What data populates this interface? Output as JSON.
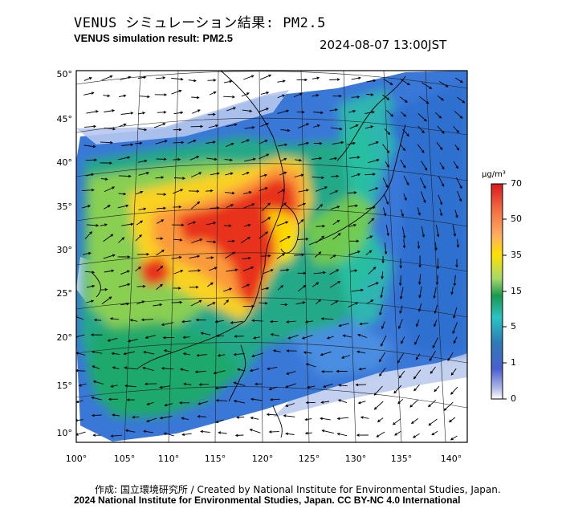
{
  "title_jp": "VENUS シミュレーション結果: PM2.5",
  "title_en": "VENUS simulation result: PM2.5",
  "datetime": "2024-08-07 13:00JST",
  "lat_labels": [
    "50°",
    "45°",
    "40°",
    "35°",
    "30°",
    "25°",
    "20°",
    "15°",
    "10°"
  ],
  "lon_labels": [
    "100°",
    "105°",
    "110°",
    "115°",
    "120°",
    "125°",
    "130°",
    "135°",
    "140°"
  ],
  "colorbar": {
    "unit": "μg/m³",
    "ticks": [
      "70",
      "50",
      "35",
      "15",
      "5",
      "1",
      "0"
    ],
    "colors": [
      "#d7191c",
      "#f46d43",
      "#fdae61",
      "#ffe000",
      "#a6d96a",
      "#1a9850",
      "#2bc4c4",
      "#2c7bb6",
      "#4a5fd0",
      "#b0b8e8",
      "#ffffff"
    ]
  },
  "credit_line1": "作成: 国立環境研究所 / Created by National Institute for Environmental Studies, Japan.",
  "credit_line2": "2024 National Institute for Environmental Studies, Japan. CC BY-NC 4.0 International"
}
